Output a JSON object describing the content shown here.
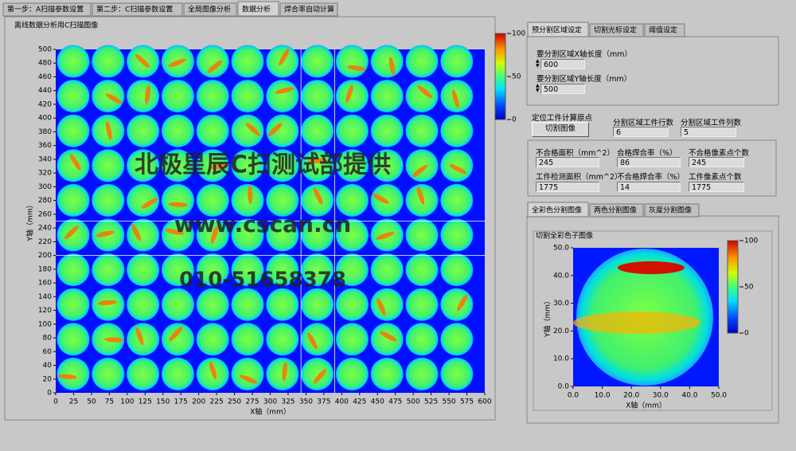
{
  "tabs": [
    "第一步：A扫描参数设置",
    "第二步：C扫描参数设置",
    "全局图像分析",
    "数据分析",
    "焊合率自动计算"
  ],
  "main_image": {
    "title": "离线数据分析用C扫描图像",
    "x_label": "X轴（mm）",
    "y_label": "Y轴（mm）",
    "xlim": [
      0,
      600
    ],
    "xticks": [
      0,
      25,
      50,
      75,
      100,
      125,
      150,
      175,
      200,
      225,
      250,
      275,
      300,
      325,
      350,
      375,
      400,
      425,
      450,
      475,
      500,
      525,
      550,
      575,
      600
    ],
    "ylim": [
      0,
      500
    ],
    "yticks": [
      0,
      20,
      40,
      60,
      80,
      100,
      120,
      140,
      160,
      180,
      200,
      220,
      240,
      260,
      280,
      300,
      320,
      340,
      360,
      380,
      400,
      420,
      440,
      460,
      480,
      500
    ],
    "cursor_x": [
      343,
      390
    ],
    "cursor_y": [
      200,
      250
    ],
    "colorbar_lim": [
      0,
      100
    ],
    "colorbar_ticks": [
      0,
      50,
      100
    ],
    "watermarks": [
      "北极星辰C扫测试部提供",
      "www.cscan.cn",
      "010-51658378"
    ]
  },
  "settings_tabs": [
    "预分割区域设定",
    "切割光标设定",
    "阈值设定"
  ],
  "region": {
    "x_length_label": "要分割区域X轴长度（mm）",
    "x_length": "600",
    "y_length_label": "要分割区域Y轴长度（mm）",
    "y_length": "500"
  },
  "origin_label": "定位工件计算原点",
  "cut_button": "切割图像",
  "rows_label": "分割区域工件行数",
  "rows": "6",
  "cols_label": "分割区域工件列数",
  "cols": "5",
  "stats": [
    {
      "label": "不合格面积（mm^2）",
      "value": "245"
    },
    {
      "label": "合格焊合率（%）",
      "value": "86"
    },
    {
      "label": "不合格像素点个数",
      "value": "245"
    },
    {
      "label": "工件检测面积（mm^2）",
      "value": "1775"
    },
    {
      "label": "不合格焊合率（%）",
      "value": "14"
    },
    {
      "label": "工件像素点个数",
      "value": "1775"
    }
  ],
  "image_tabs": [
    "全彩色分割图像",
    "两色分割图像",
    "灰度分割图像"
  ],
  "sub_image": {
    "title": "切割全彩色子图像",
    "x_label": "X轴（mm）",
    "y_label": "Y轴（mm）",
    "xlim": [
      0,
      50
    ],
    "xticks": [
      {
        "value": 0,
        "label": "0.0"
      },
      {
        "value": 10,
        "label": "10.0"
      },
      {
        "value": 20,
        "label": "20.0"
      },
      {
        "value": 30,
        "label": "30.0"
      },
      {
        "value": 40,
        "label": "40.0"
      },
      {
        "value": 50,
        "label": "50.0"
      }
    ],
    "ylim": [
      0,
      50
    ],
    "yticks": [
      {
        "value": 0,
        "label": "0.0"
      },
      {
        "value": 10,
        "label": "10.0"
      },
      {
        "value": 20,
        "label": "20.0"
      },
      {
        "value": 30,
        "label": "30.0"
      },
      {
        "value": 40,
        "label": "40.0"
      },
      {
        "value": 50,
        "label": "50.0"
      }
    ],
    "colorbar_lim": [
      0,
      100
    ],
    "colorbar_ticks": [
      0,
      50,
      100
    ]
  }
}
